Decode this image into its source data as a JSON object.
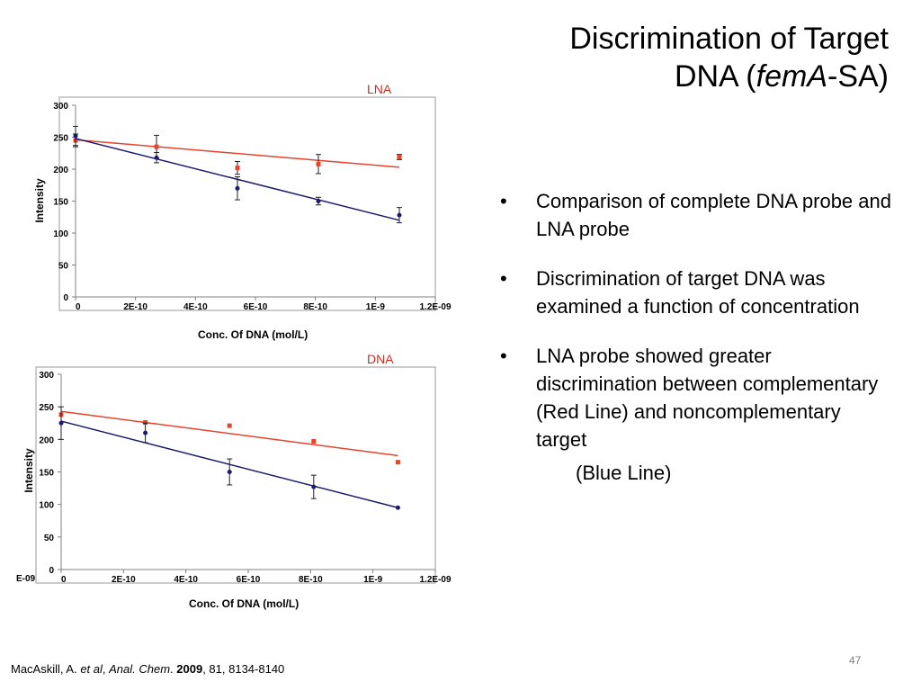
{
  "slide": {
    "title_line1": "Discrimination of Target",
    "title_line2_pre": "DNA (",
    "title_line2_italic": "femA",
    "title_line2_post": "-SA)",
    "bullets": [
      "Comparison of complete DNA probe and LNA probe",
      "Discrimination of target DNA was examined a function of concentration",
      "LNA probe showed greater discrimination between complementary (Red Line) and noncomplementary target"
    ],
    "bullet_sub": "(Blue Line)",
    "page_number": "47",
    "citation": {
      "authors": "MacAskill, A.",
      "etal": "et al",
      "journal": "Anal. Chem",
      "year": "2009",
      "rest": ", 81, 8134-8140"
    }
  },
  "chart_data": [
    {
      "type": "scatter",
      "label": "LNA",
      "xlabel": "Conc. Of DNA (mol/L)",
      "ylabel": "Intensity",
      "xlim": [
        0,
        1.2e-09
      ],
      "ylim": [
        0,
        300
      ],
      "x_ticks": [
        "0",
        "2E-10",
        "4E-10",
        "6E-10",
        "8E-10",
        "1E-9",
        "1.2E-09"
      ],
      "y_ticks": [
        "0",
        "50",
        "100",
        "150",
        "200",
        "250",
        "300"
      ],
      "grid": false,
      "colors": {
        "red": "#e8432d",
        "blue": "#1a1a6e"
      },
      "series": [
        {
          "color": "red",
          "points": [
            {
              "x": 0,
              "y": 245,
              "err": 10
            },
            {
              "x": 2.7e-10,
              "y": 235,
              "err": 18
            },
            {
              "x": 5.4e-10,
              "y": 202,
              "err": 10
            },
            {
              "x": 8.1e-10,
              "y": 208,
              "err": 15
            },
            {
              "x": 1.08e-09,
              "y": 219,
              "err": 4
            }
          ],
          "trend": [
            {
              "x": 0,
              "y": 246
            },
            {
              "x": 1.08e-09,
              "y": 203
            }
          ]
        },
        {
          "color": "blue",
          "points": [
            {
              "x": 0,
              "y": 252,
              "err": 15
            },
            {
              "x": 2.7e-10,
              "y": 218,
              "err": 8
            },
            {
              "x": 5.4e-10,
              "y": 170,
              "err": 18
            },
            {
              "x": 8.1e-10,
              "y": 150,
              "err": 6
            },
            {
              "x": 1.08e-09,
              "y": 128,
              "err": 12
            }
          ],
          "trend": [
            {
              "x": 0,
              "y": 248
            },
            {
              "x": 1.08e-09,
              "y": 120
            }
          ]
        }
      ]
    },
    {
      "type": "scatter",
      "label": "DNA",
      "xlabel": "Conc. Of DNA (mol/L)",
      "ylabel": "Intensity",
      "xlim": [
        0,
        1.2e-09
      ],
      "ylim": [
        0,
        300
      ],
      "x_ticks": [
        "0",
        "2E-10",
        "4E-10",
        "6E-10",
        "8E-10",
        "1E-9",
        "1.2E-09"
      ],
      "x_extra_label": "E-09",
      "y_ticks": [
        "0",
        "50",
        "100",
        "150",
        "200",
        "250",
        "300"
      ],
      "grid": false,
      "colors": {
        "red": "#e8432d",
        "blue": "#1a1a6e"
      },
      "series": [
        {
          "color": "red",
          "points": [
            {
              "x": 0,
              "y": 238,
              "err": 0
            },
            {
              "x": 2.7e-10,
              "y": 226,
              "err": 0
            },
            {
              "x": 5.4e-10,
              "y": 221,
              "err": 0
            },
            {
              "x": 8.1e-10,
              "y": 197,
              "err": 0
            },
            {
              "x": 1.08e-09,
              "y": 165,
              "err": 0
            }
          ],
          "trend": [
            {
              "x": 0,
              "y": 243
            },
            {
              "x": 1.08e-09,
              "y": 175
            }
          ]
        },
        {
          "color": "blue",
          "points": [
            {
              "x": 0,
              "y": 225,
              "err": 25
            },
            {
              "x": 2.7e-10,
              "y": 210,
              "err": 15
            },
            {
              "x": 5.4e-10,
              "y": 150,
              "err": 20
            },
            {
              "x": 8.1e-10,
              "y": 127,
              "err": 18
            },
            {
              "x": 1.08e-09,
              "y": 95,
              "err": 0
            }
          ],
          "trend": [
            {
              "x": 0,
              "y": 228
            },
            {
              "x": 1.08e-09,
              "y": 95
            }
          ]
        }
      ]
    }
  ]
}
